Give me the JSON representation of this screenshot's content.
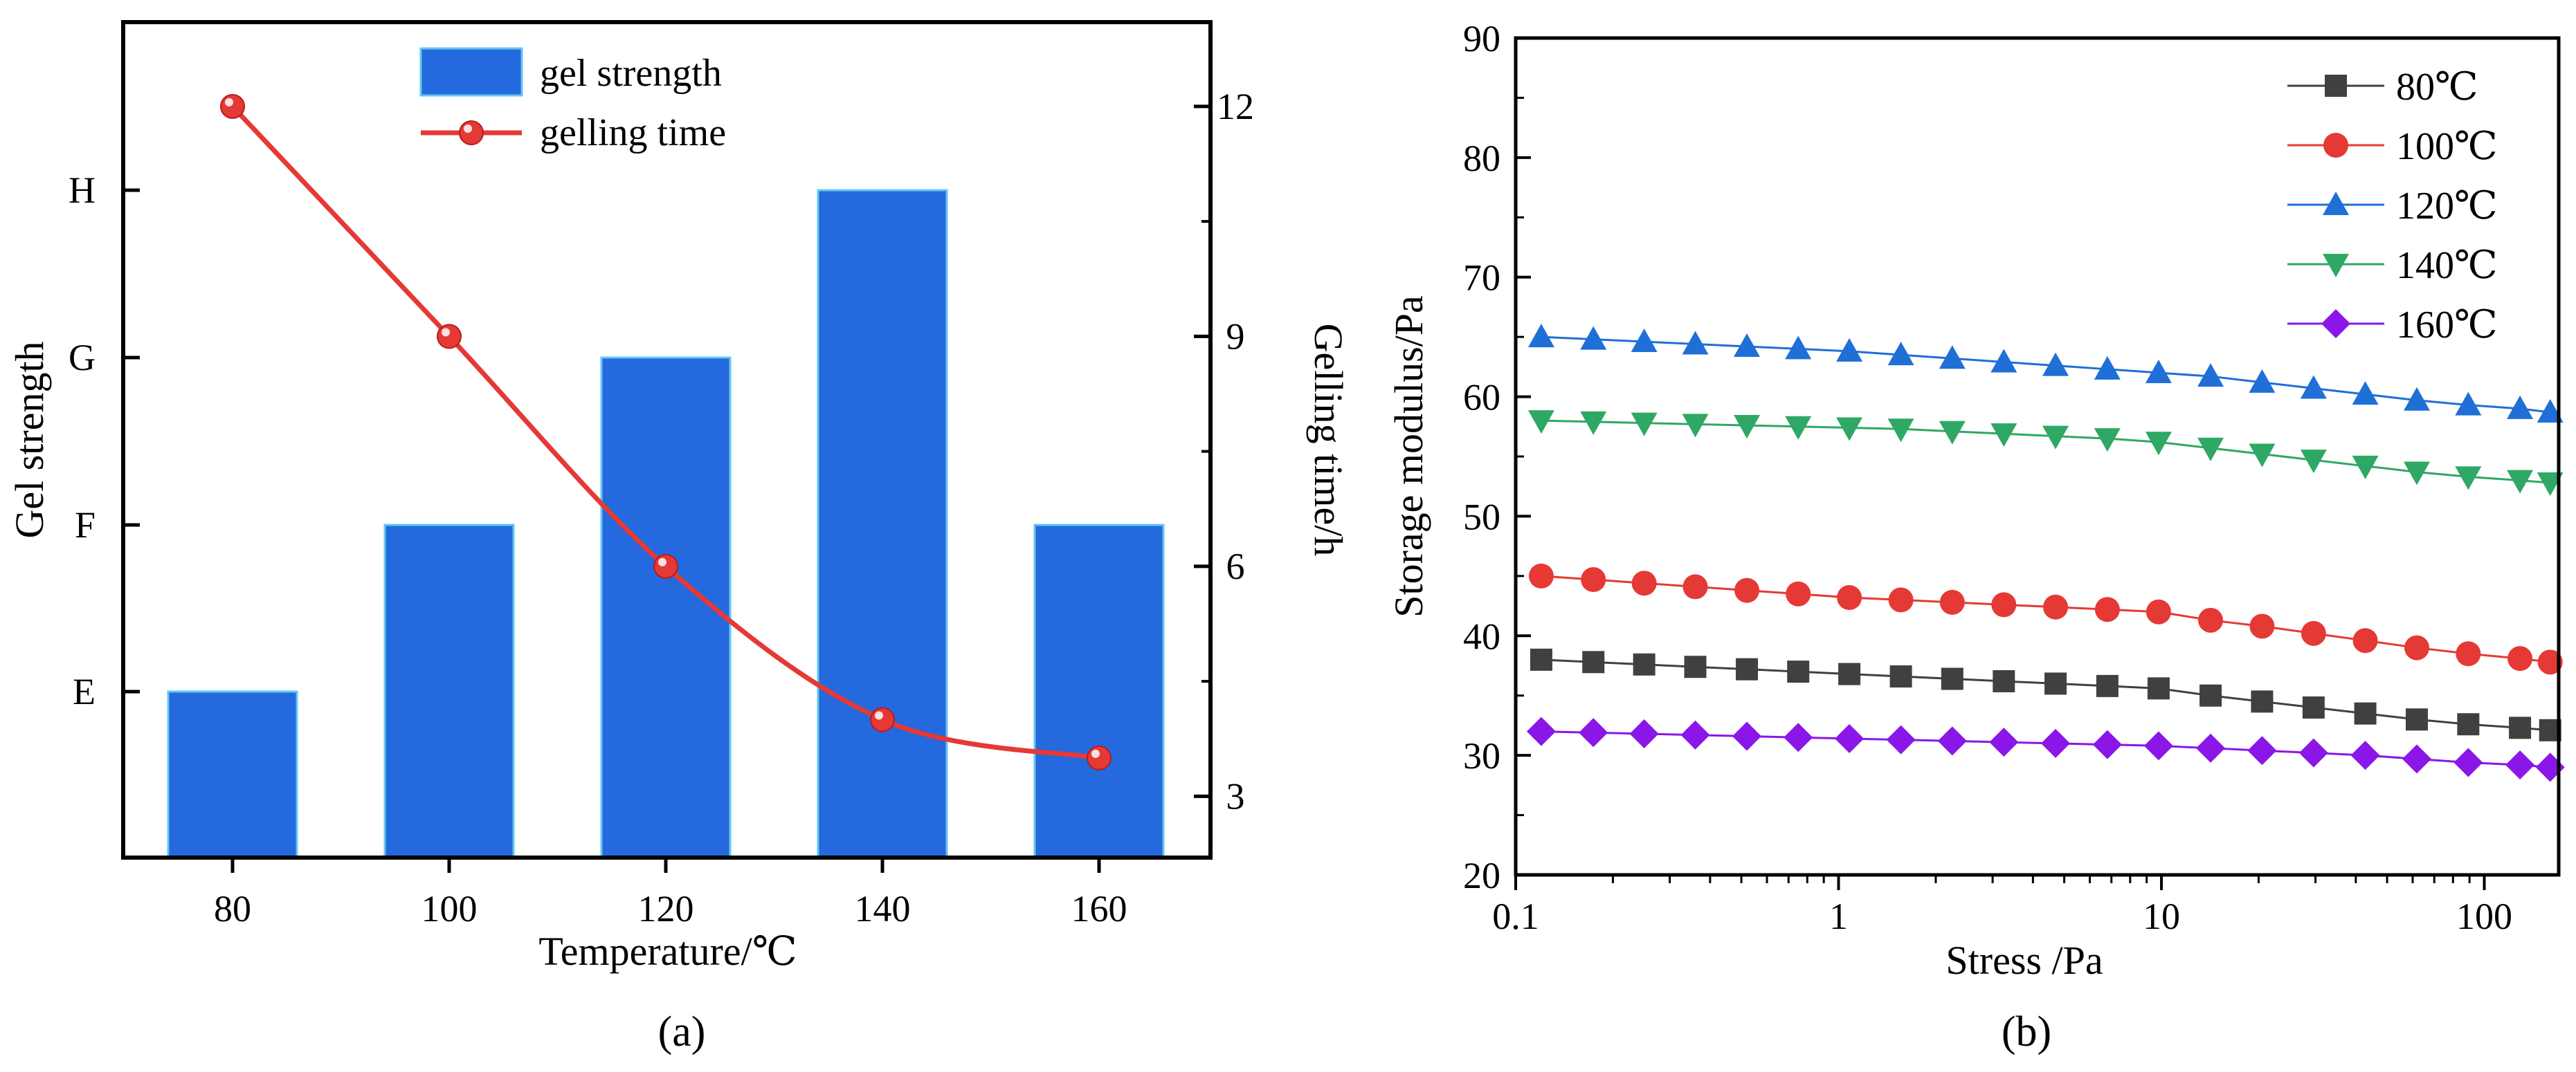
{
  "chart_data": [
    {
      "panel": "a",
      "type": "bar",
      "xlabel": "Temperature/℃",
      "ylabel": "Gel strength",
      "y2label": "Gelling time/h",
      "categories": [
        "80",
        "100",
        "120",
        "140",
        "160"
      ],
      "gel_strength_scale": [
        "E",
        "F",
        "G",
        "H"
      ],
      "series": [
        {
          "name": "gel strength",
          "kind": "bar",
          "axis": "left",
          "values": [
            "E",
            "F",
            "G",
            "H",
            "F"
          ],
          "color": "#2469de"
        },
        {
          "name": "gelling time",
          "kind": "line",
          "axis": "right",
          "values": [
            12.0,
            9.0,
            6.0,
            4.0,
            3.5
          ],
          "color": "#e53935"
        }
      ],
      "y2lim": [
        2.2,
        13.1
      ],
      "y2ticks": [
        3,
        6,
        9,
        12
      ],
      "legend": "top-center",
      "label": "(a)"
    },
    {
      "panel": "b",
      "type": "line",
      "xscale": "log",
      "xlabel": "Stress /Pa",
      "ylabel": "Storage modulus/Pa",
      "xlim": [
        0.1,
        170
      ],
      "ylim": [
        20,
        90
      ],
      "xticks": [
        0.1,
        1,
        10,
        100
      ],
      "xtick_labels": [
        "0.1",
        "1",
        "10",
        "100"
      ],
      "yticks": [
        20,
        30,
        40,
        50,
        60,
        70,
        80,
        90
      ],
      "x": [
        0.12,
        0.174,
        0.25,
        0.36,
        0.52,
        0.75,
        1.08,
        1.56,
        2.25,
        3.25,
        4.7,
        6.8,
        9.8,
        14.2,
        20.5,
        29.6,
        42.8,
        61.8,
        89.2,
        129,
        160
      ],
      "series": [
        {
          "name": "80℃",
          "marker": "square",
          "color": "#404040",
          "values": [
            38,
            37.8,
            37.6,
            37.4,
            37.2,
            37.0,
            36.8,
            36.6,
            36.4,
            36.2,
            36.0,
            35.8,
            35.6,
            35.0,
            34.5,
            34.0,
            33.5,
            33.0,
            32.6,
            32.3,
            32.1
          ]
        },
        {
          "name": "100℃",
          "marker": "circle",
          "color": "#e53935",
          "values": [
            45,
            44.7,
            44.4,
            44.1,
            43.8,
            43.5,
            43.2,
            43.0,
            42.8,
            42.6,
            42.4,
            42.2,
            42.0,
            41.3,
            40.8,
            40.2,
            39.6,
            39.0,
            38.5,
            38.1,
            37.8
          ]
        },
        {
          "name": "120℃",
          "marker": "triangle-up",
          "color": "#1f6fd6",
          "values": [
            65,
            64.8,
            64.6,
            64.4,
            64.2,
            64.0,
            63.8,
            63.5,
            63.2,
            62.9,
            62.6,
            62.3,
            62.0,
            61.7,
            61.2,
            60.7,
            60.2,
            59.7,
            59.3,
            59.0,
            58.7
          ]
        },
        {
          "name": "140℃",
          "marker": "triangle-down",
          "color": "#2ea864",
          "values": [
            58,
            57.9,
            57.8,
            57.7,
            57.6,
            57.5,
            57.4,
            57.3,
            57.1,
            56.9,
            56.7,
            56.5,
            56.2,
            55.7,
            55.2,
            54.7,
            54.2,
            53.7,
            53.3,
            53.0,
            52.8
          ]
        },
        {
          "name": "160℃",
          "marker": "diamond",
          "color": "#8a16e8",
          "values": [
            32,
            31.9,
            31.8,
            31.7,
            31.6,
            31.5,
            31.4,
            31.3,
            31.2,
            31.1,
            31.0,
            30.9,
            30.8,
            30.6,
            30.4,
            30.2,
            30.0,
            29.7,
            29.4,
            29.2,
            29.0
          ]
        }
      ],
      "legend": "top-right",
      "label": "(b)"
    }
  ]
}
